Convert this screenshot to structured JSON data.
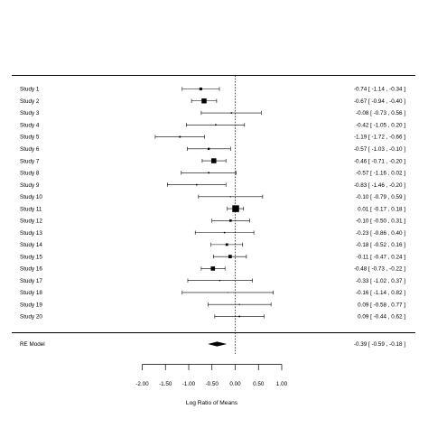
{
  "chart_data": {
    "type": "forest",
    "xlabel": "Log Ratio of Means",
    "xlim": [
      -2.0,
      1.0
    ],
    "xticks": [
      -2.0,
      -1.5,
      -1.0,
      -0.5,
      0.0,
      0.5,
      1.0
    ],
    "xtick_labels": [
      "-2.00",
      "-1.50",
      "-1.00",
      "-0.50",
      "0.00",
      "0.50",
      "1.00"
    ],
    "reference_line": 0,
    "studies": [
      {
        "label": "Study  1",
        "estimate": -0.74,
        "ci_low": -1.14,
        "ci_high": -0.34,
        "ci_text": "-0.74 [ -1.14 , -0.34 ]",
        "weight": 3.1
      },
      {
        "label": "Study  2",
        "estimate": -0.67,
        "ci_low": -0.94,
        "ci_high": -0.4,
        "ci_text": "-0.67 [ -0.94 , -0.40 ]",
        "weight": 5.5
      },
      {
        "label": "Study  3",
        "estimate": -0.08,
        "ci_low": -0.73,
        "ci_high": 0.56,
        "ci_text": "-0.08 [ -0.73 ,  0.56 ]",
        "weight": 1.5
      },
      {
        "label": "Study  4",
        "estimate": -0.42,
        "ci_low": -1.05,
        "ci_high": 0.2,
        "ci_text": "-0.42 [ -1.05 ,  0.20 ]",
        "weight": 1.6
      },
      {
        "label": "Study  5",
        "estimate": -1.19,
        "ci_low": -1.72,
        "ci_high": -0.66,
        "ci_text": "-1.19 [ -1.72 , -0.66 ]",
        "weight": 1.9
      },
      {
        "label": "Study  6",
        "estimate": -0.57,
        "ci_low": -1.03,
        "ci_high": -0.1,
        "ci_text": "-0.57 [ -1.03 , -0.10 ]",
        "weight": 2.3
      },
      {
        "label": "Study  7",
        "estimate": -0.46,
        "ci_low": -0.71,
        "ci_high": -0.2,
        "ci_text": "-0.46 [ -0.71 , -0.20 ]",
        "weight": 5.5
      },
      {
        "label": "Study  8",
        "estimate": -0.57,
        "ci_low": -1.16,
        "ci_high": 0.02,
        "ci_text": "-0.57 [ -1.16 ,  0.02 ]",
        "weight": 1.7
      },
      {
        "label": "Study  9",
        "estimate": -0.83,
        "ci_low": -1.46,
        "ci_high": -0.2,
        "ci_text": "-0.83 [ -1.46 , -0.20 ]",
        "weight": 1.6
      },
      {
        "label": "Study  10",
        "estimate": -0.1,
        "ci_low": -0.79,
        "ci_high": 0.59,
        "ci_text": "-0.10 [ -0.79 ,  0.59 ]",
        "weight": 1.2
      },
      {
        "label": "Study  11",
        "estimate": 0.01,
        "ci_low": -0.17,
        "ci_high": 0.18,
        "ci_text": "0.01 [ -0.17 ,  0.18 ]",
        "weight": 7.5
      },
      {
        "label": "Study  12",
        "estimate": -0.1,
        "ci_low": -0.5,
        "ci_high": 0.31,
        "ci_text": "-0.10 [ -0.50 ,  0.31 ]",
        "weight": 2.6
      },
      {
        "label": "Study  13",
        "estimate": -0.23,
        "ci_low": -0.86,
        "ci_high": 0.4,
        "ci_text": "-0.23 [ -0.86 ,  0.40 ]",
        "weight": 1.5
      },
      {
        "label": "Study  14",
        "estimate": -0.18,
        "ci_low": -0.52,
        "ci_high": 0.16,
        "ci_text": "-0.18 [ -0.52 ,  0.16 ]",
        "weight": 2.8
      },
      {
        "label": "Study  15",
        "estimate": -0.11,
        "ci_low": -0.47,
        "ci_high": 0.24,
        "ci_text": "-0.11 [ -0.47 ,  0.24 ]",
        "weight": 3.8
      },
      {
        "label": "Study  16",
        "estimate": -0.48,
        "ci_low": -0.73,
        "ci_high": -0.22,
        "ci_text": "-0.48 [ -0.73 , -0.22 ]",
        "weight": 4.6
      },
      {
        "label": "Study  17",
        "estimate": -0.33,
        "ci_low": -1.02,
        "ci_high": 0.37,
        "ci_text": "-0.33 [ -1.02 ,  0.37 ]",
        "weight": 1.3
      },
      {
        "label": "Study  18",
        "estimate": -0.16,
        "ci_low": -1.14,
        "ci_high": 0.82,
        "ci_text": "-0.16 [ -1.14 ,  0.82 ]",
        "weight": 0.9
      },
      {
        "label": "Study  19",
        "estimate": 0.09,
        "ci_low": -0.58,
        "ci_high": 0.77,
        "ci_text": "0.09 [ -0.58 ,  0.77 ]",
        "weight": 1.2
      },
      {
        "label": "Study  20",
        "estimate": 0.09,
        "ci_low": -0.44,
        "ci_high": 0.62,
        "ci_text": "0.09 [ -0.44 ,  0.62 ]",
        "weight": 1.6
      }
    ],
    "summary": {
      "label": "RE Model",
      "estimate": -0.39,
      "ci_low": -0.59,
      "ci_high": -0.18,
      "ci_text": "-0.39 [ -0.59 , -0.18 ]"
    }
  }
}
